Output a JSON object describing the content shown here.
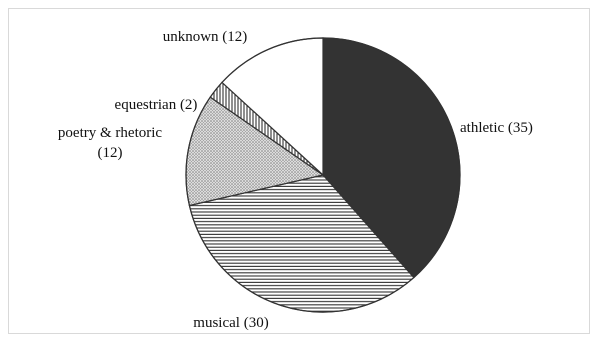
{
  "chart_data": {
    "type": "pie",
    "title": "",
    "start_angle_deg": 0,
    "direction": "clockwise",
    "categories": [
      "athletic",
      "musical",
      "poetry & rhetoric",
      "equestrian",
      "unknown"
    ],
    "values": [
      35,
      30,
      12,
      2,
      12
    ],
    "labels": [
      "athletic (35)",
      "musical (30)",
      "poetry & rhetoric (12)",
      "equestrian (2)",
      "unknown (12)"
    ],
    "fills": [
      "solid-dark",
      "horizontal-stripes",
      "dots",
      "vertical-stripes",
      "white"
    ],
    "colors": {
      "dark": "#333333",
      "stroke": "#333333",
      "light": "#ffffff"
    },
    "legend": "none"
  }
}
